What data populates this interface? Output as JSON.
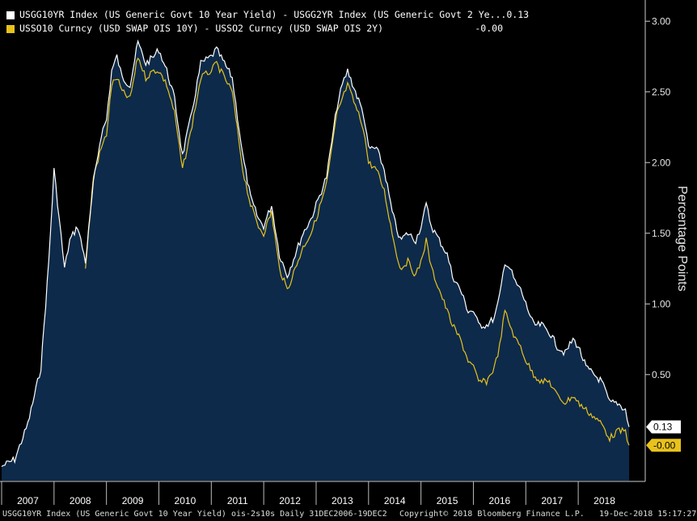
{
  "legend": {
    "series1_label": "USGG10YR Index (US Generic Govt 10 Year Yield) - USGG2YR Index (US Generic Govt 2 Ye...",
    "series1_value": "0.13",
    "series2_label": "USSO10 Curncy (USD SWAP OIS 10Y) - USSO2 Curncy (USD SWAP OIS 2Y)",
    "series2_value": "-0.00"
  },
  "footer": {
    "left": "USGG10YR Index (US Generic Govt 10 Year Yield) ois-2s10s  Daily 31DEC2006-19DEC2",
    "center": "Copyright© 2018 Bloomberg Finance L.P.",
    "right": "19-Dec-2018 15:17:27"
  },
  "colors": {
    "series1": "#ffffff",
    "series2": "#e8c21c",
    "area": "#0d2a4a",
    "background": "#000000"
  },
  "chart_data": {
    "type": "line",
    "ylabel": "Percentage Points",
    "ylim": [
      -0.25,
      3.15
    ],
    "yticks": [
      "0.50",
      "1.00",
      "1.50",
      "2.00",
      "2.50",
      "3.00"
    ],
    "xlim": [
      2007.0,
      2018.97
    ],
    "xticks": [
      "2007",
      "2008",
      "2009",
      "2010",
      "2011",
      "2012",
      "2013",
      "2014",
      "2015",
      "2016",
      "2017",
      "2018"
    ],
    "last_value_tags": [
      "0.13",
      "-0.00"
    ],
    "series": [
      {
        "name": "USGG10YR Index (US Generic Govt 10 Year Yield) - USGG2YR Index (US Generic Govt 2 Ye...",
        "x": [
          2007.0,
          2007.25,
          2007.5,
          2007.75,
          2007.9,
          2008.0,
          2008.1,
          2008.2,
          2008.3,
          2008.45,
          2008.6,
          2008.75,
          2008.9,
          2009.0,
          2009.1,
          2009.2,
          2009.3,
          2009.45,
          2009.6,
          2009.75,
          2009.9,
          2010.0,
          2010.15,
          2010.3,
          2010.45,
          2010.6,
          2010.8,
          2011.0,
          2011.1,
          2011.25,
          2011.4,
          2011.6,
          2011.75,
          2011.9,
          2012.0,
          2012.15,
          2012.3,
          2012.45,
          2012.6,
          2012.75,
          2012.9,
          2013.0,
          2013.2,
          2013.4,
          2013.5,
          2013.6,
          2013.75,
          2013.9,
          2014.0,
          2014.15,
          2014.3,
          2014.45,
          2014.6,
          2014.75,
          2014.9,
          2015.0,
          2015.1,
          2015.2,
          2015.35,
          2015.5,
          2015.6,
          2015.75,
          2015.9,
          2016.0,
          2016.1,
          2016.25,
          2016.4,
          2016.5,
          2016.6,
          2016.7,
          2016.8,
          2016.9,
          2017.0,
          2017.15,
          2017.3,
          2017.45,
          2017.6,
          2017.75,
          2017.9,
          2018.0,
          2018.15,
          2018.3,
          2018.45,
          2018.6,
          2018.75,
          2018.9,
          2018.97
        ],
        "y": [
          -0.15,
          -0.1,
          0.15,
          0.55,
          1.3,
          1.95,
          1.6,
          1.25,
          1.45,
          1.55,
          1.3,
          1.85,
          2.2,
          2.3,
          2.65,
          2.75,
          2.6,
          2.55,
          2.85,
          2.7,
          2.75,
          2.8,
          2.65,
          2.45,
          2.05,
          2.3,
          2.7,
          2.75,
          2.8,
          2.7,
          2.6,
          2.05,
          1.75,
          1.6,
          1.55,
          1.7,
          1.35,
          1.2,
          1.35,
          1.5,
          1.6,
          1.7,
          1.9,
          2.4,
          2.55,
          2.65,
          2.5,
          2.35,
          2.1,
          2.1,
          1.95,
          1.65,
          1.45,
          1.5,
          1.45,
          1.55,
          1.7,
          1.55,
          1.45,
          1.35,
          1.2,
          1.1,
          0.95,
          0.95,
          0.85,
          0.85,
          0.9,
          1.05,
          1.3,
          1.25,
          1.15,
          1.1,
          1.0,
          0.85,
          0.85,
          0.8,
          0.7,
          0.65,
          0.75,
          0.7,
          0.55,
          0.5,
          0.45,
          0.3,
          0.3,
          0.25,
          0.13
        ]
      },
      {
        "name": "USSO10 Curncy (USD SWAP OIS 10Y) - USSO2 Curncy (USD SWAP OIS 2Y)",
        "x": [
          2008.6,
          2008.75,
          2008.9,
          2009.0,
          2009.1,
          2009.2,
          2009.3,
          2009.45,
          2009.6,
          2009.75,
          2009.9,
          2010.0,
          2010.15,
          2010.3,
          2010.45,
          2010.6,
          2010.8,
          2011.0,
          2011.1,
          2011.25,
          2011.4,
          2011.6,
          2011.75,
          2011.9,
          2012.0,
          2012.15,
          2012.3,
          2012.45,
          2012.6,
          2012.75,
          2012.9,
          2013.0,
          2013.2,
          2013.4,
          2013.5,
          2013.6,
          2013.75,
          2013.9,
          2014.0,
          2014.15,
          2014.3,
          2014.45,
          2014.6,
          2014.75,
          2014.9,
          2015.0,
          2015.1,
          2015.2,
          2015.35,
          2015.5,
          2015.6,
          2015.75,
          2015.9,
          2016.0,
          2016.1,
          2016.25,
          2016.4,
          2016.5,
          2016.6,
          2016.7,
          2016.8,
          2016.9,
          2017.0,
          2017.15,
          2017.3,
          2017.45,
          2017.6,
          2017.75,
          2017.9,
          2018.0,
          2018.15,
          2018.3,
          2018.45,
          2018.6,
          2018.75,
          2018.9,
          2018.97
        ],
        "y": [
          1.25,
          1.9,
          2.1,
          2.2,
          2.55,
          2.6,
          2.5,
          2.45,
          2.75,
          2.6,
          2.65,
          2.65,
          2.55,
          2.35,
          1.95,
          2.2,
          2.6,
          2.65,
          2.7,
          2.6,
          2.5,
          1.95,
          1.7,
          1.55,
          1.5,
          1.65,
          1.25,
          1.1,
          1.25,
          1.4,
          1.5,
          1.6,
          1.85,
          2.35,
          2.45,
          2.55,
          2.4,
          2.25,
          2.0,
          1.95,
          1.8,
          1.5,
          1.25,
          1.3,
          1.2,
          1.3,
          1.45,
          1.25,
          1.1,
          0.95,
          0.85,
          0.75,
          0.6,
          0.55,
          0.45,
          0.45,
          0.55,
          0.7,
          0.95,
          0.85,
          0.75,
          0.7,
          0.6,
          0.5,
          0.45,
          0.45,
          0.35,
          0.3,
          0.35,
          0.3,
          0.25,
          0.2,
          0.15,
          0.05,
          0.1,
          0.1,
          -0.0
        ]
      }
    ]
  }
}
